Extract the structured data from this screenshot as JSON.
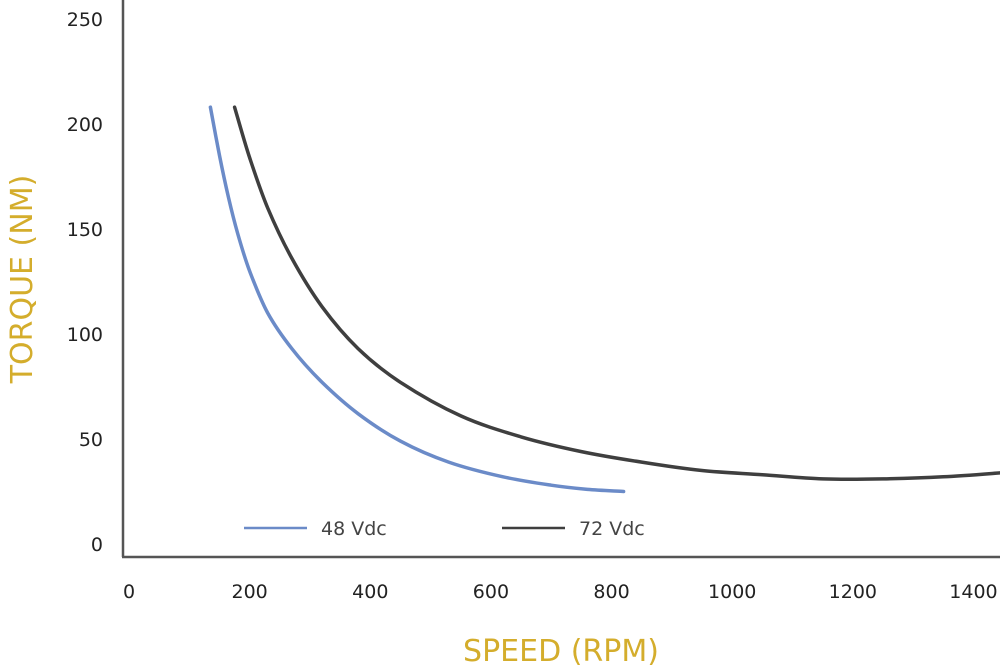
{
  "chart_data": {
    "type": "line",
    "title": "",
    "xlabel": "SPEED (RPM)",
    "ylabel": "TORQUE (NM)",
    "xlim": [
      0,
      1450
    ],
    "ylim": [
      0,
      250
    ],
    "x_ticks": [
      "0",
      "200",
      "400",
      "600",
      "800",
      "1000",
      "1200",
      "1400"
    ],
    "y_ticks": [
      "0",
      "50",
      "100",
      "150",
      "200",
      "250"
    ],
    "grid": false,
    "legend_position": "bottom",
    "series": [
      {
        "name": "48 Vdc",
        "color": "#6b8bc8",
        "x": [
          135,
          150,
          165,
          180,
          200,
          230,
          270,
          320,
          380,
          450,
          530,
          620,
          700,
          760,
          820
        ],
        "y": [
          208,
          185,
          165,
          148,
          130,
          110,
          93,
          77,
          62,
          49,
          39,
          32,
          28,
          26,
          25
        ]
      },
      {
        "name": "72 Vdc",
        "color": "#3f3f3f",
        "x": [
          175,
          200,
          230,
          270,
          320,
          380,
          450,
          550,
          650,
          750,
          850,
          950,
          1050,
          1150,
          1250,
          1350,
          1450
        ],
        "y": [
          208,
          184,
          160,
          136,
          113,
          93,
          77,
          61,
          51,
          44,
          39,
          35,
          33,
          31,
          31,
          32,
          34
        ]
      }
    ]
  }
}
